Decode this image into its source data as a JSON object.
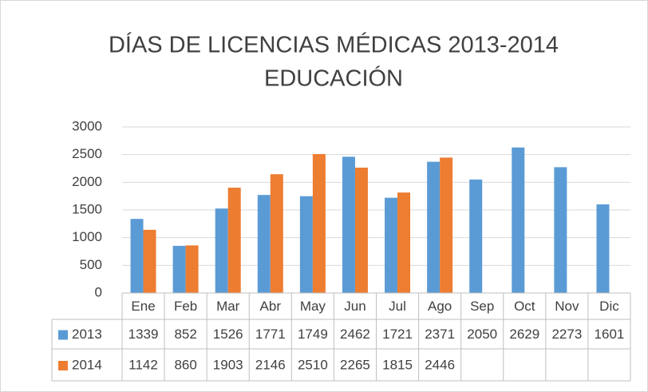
{
  "chart_data": {
    "type": "bar",
    "title": [
      "DÍAS DE LICENCIAS MÉDICAS 2013-2014",
      "EDUCACIÓN"
    ],
    "categories": [
      "Ene",
      "Feb",
      "Mar",
      "Abr",
      "May",
      "Jun",
      "Jul",
      "Ago",
      "Sep",
      "Oct",
      "Nov",
      "Dic"
    ],
    "series": [
      {
        "name": "2013",
        "color": "#5b9bd5",
        "values": [
          1339,
          852,
          1526,
          1771,
          1749,
          2462,
          1721,
          2371,
          2050,
          2629,
          2273,
          1601
        ]
      },
      {
        "name": "2014",
        "color": "#ed7d31",
        "values": [
          1142,
          860,
          1903,
          2146,
          2510,
          2265,
          1815,
          2446,
          null,
          null,
          null,
          null
        ]
      }
    ],
    "ylim": [
      0,
      3000
    ],
    "yticks": [
      0,
      500,
      1000,
      1500,
      2000,
      2500,
      3000
    ],
    "grid": true,
    "data_table": true
  }
}
